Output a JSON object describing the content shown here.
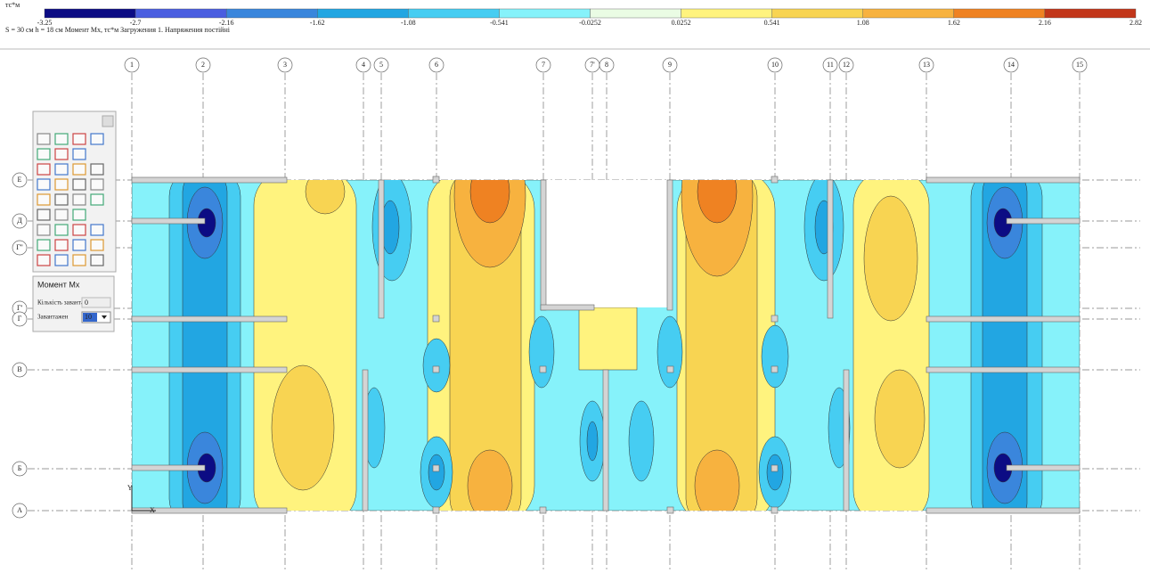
{
  "colorbar": {
    "unit": "тс*м",
    "labels": [
      -3.25,
      -2.7,
      -2.16,
      -1.62,
      -1.08,
      -0.541,
      -0.0252,
      0.0252,
      0.541,
      1.08,
      1.62,
      2.16,
      2.82
    ],
    "colors": [
      "#0c0c84",
      "#4a5ee0",
      "#3a86dc",
      "#22a6e2",
      "#46cdf2",
      "#86f2fa",
      "#eafce4",
      "#fff37e",
      "#f8d452",
      "#f7b23f",
      "#ef8222",
      "#c2361a"
    ]
  },
  "caption": "S = 30 см   h = 18 см   Момент Mx, тс*м   Загружения 1.   Напряжения постійні",
  "axes": {
    "columns": [
      "1",
      "2",
      "3",
      "4",
      "5",
      "6",
      "7",
      "7'",
      "8",
      "9",
      "10",
      "11",
      "12",
      "13",
      "14",
      "15"
    ],
    "rows": [
      "Е",
      "Д",
      "Г''",
      "Г'",
      "Г",
      "В",
      "Б",
      "А"
    ]
  },
  "panel": {
    "title": "Момент Мх",
    "fields": [
      {
        "label": "Кількість завантаж",
        "value": "0"
      },
      {
        "label": "Завантажен",
        "value": "10"
      }
    ]
  },
  "plot": {
    "axis_x": "X",
    "axis_y": "Y"
  }
}
